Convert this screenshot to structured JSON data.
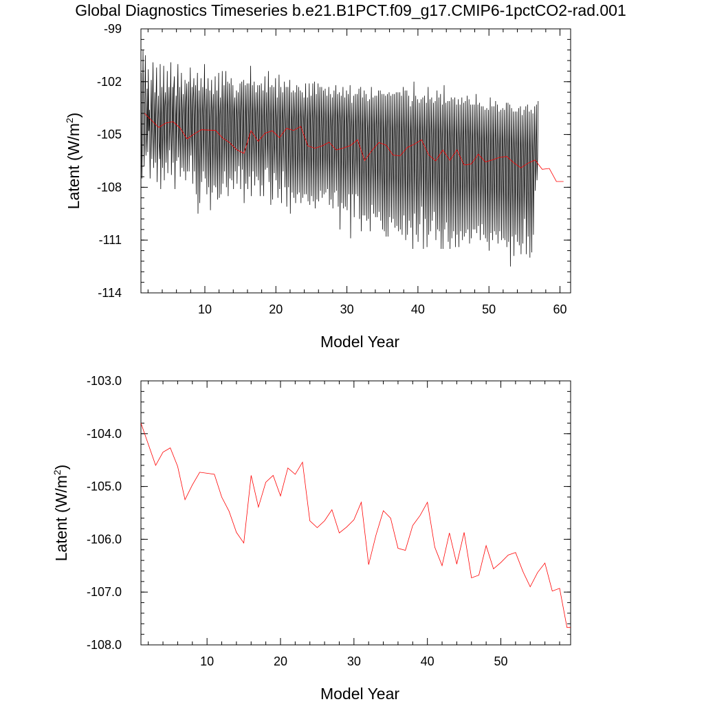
{
  "figure_title": "Global Diagnostics Timeseries b.e21.B1PCT.f09_g17.CMIP6-1pctCO2-rad.001",
  "chart_data": [
    {
      "type": "line",
      "xlabel": "Model Year",
      "ylabel_main": "Latent (W/m",
      "ylabel_sup": "2",
      "ylabel_tail": ")",
      "xlim": [
        1,
        61.5
      ],
      "ylim": [
        -114,
        -99
      ],
      "x_ticks": [
        10,
        20,
        30,
        40,
        50,
        60
      ],
      "y_ticks": [
        -99,
        -102,
        -105,
        -108,
        -111,
        -114
      ],
      "y_tick_labels": [
        "-99",
        "-102",
        "-105",
        "-108",
        "-111",
        "-114"
      ],
      "grid": false,
      "series": [
        {
          "color": "#000000",
          "x_start": 1.04,
          "x_step": 0.0833,
          "values": [
            -101.5,
            -107.5,
            -105.4,
            -100.2,
            -103.9,
            -106.8,
            -103.1,
            -100.5,
            -106.2,
            -105.1,
            -102.4,
            -106.0,
            -101.3,
            -104.8,
            -103.6,
            -107.5,
            -104.2,
            -101.9,
            -106.4,
            -103.3,
            -100.9,
            -106.9,
            -104.8,
            -102.6,
            -106.6,
            -103.1,
            -101.2,
            -107.7,
            -104.5,
            -102.8,
            -105.4,
            -106.4,
            -101.0,
            -108.1,
            -104.6,
            -102.3,
            -106.9,
            -104.0,
            -101.1,
            -107.6,
            -103.4,
            -102.6,
            -106.6,
            -104.6,
            -101.4,
            -107.2,
            -103.7,
            -102.3,
            -105.9,
            -104.2,
            -100.9,
            -107.3,
            -104.6,
            -102.3,
            -106.6,
            -102.4,
            -101.7,
            -108.1,
            -104.5,
            -102.8,
            -106.5,
            -103.0,
            -101.0,
            -106.3,
            -104.6,
            -102.3,
            -107.4,
            -103.8,
            -101.5,
            -106.9,
            -104.0,
            -102.7,
            -107.1,
            -104.8,
            -101.9,
            -107.6,
            -103.2,
            -102.1,
            -107.1,
            -104.4,
            -102.0,
            -107.1,
            -104.3,
            -101.2,
            -106.2,
            -104.6,
            -102.3,
            -107.8,
            -103.0,
            -101.8,
            -107.1,
            -103.9,
            -102.2,
            -108.4,
            -103.9,
            -101.5,
            -109.5,
            -104.0,
            -102.5,
            -108.9,
            -104.5,
            -101.8,
            -107.7,
            -104.4,
            -102.3,
            -107.1,
            -103.9,
            -101.0,
            -107.5,
            -104.1,
            -102.4,
            -108.4,
            -104.1,
            -101.8,
            -108.0,
            -104.9,
            -102.5,
            -109.3,
            -104.0,
            -101.9,
            -108.3,
            -103.8,
            -102.7,
            -107.9,
            -104.4,
            -101.7,
            -108.0,
            -104.9,
            -102.5,
            -108.7,
            -104.2,
            -101.5,
            -108.6,
            -103.9,
            -102.9,
            -108.4,
            -104.6,
            -101.4,
            -107.8,
            -104.2,
            -102.2,
            -107.1,
            -104.5,
            -101.4,
            -108.0,
            -103.9,
            -102.0,
            -108.5,
            -104.6,
            -102.1,
            -107.5,
            -104.1,
            -101.8,
            -107.6,
            -104.7,
            -102.2,
            -108.1,
            -103.8,
            -102.9,
            -107.1,
            -104.2,
            -102.5,
            -107.8,
            -104.3,
            -102.6,
            -106.8,
            -104.5,
            -102.1,
            -108.1,
            -103.9,
            -102.0,
            -107.0,
            -104.6,
            -101.9,
            -108.9,
            -104.6,
            -102.2,
            -107.8,
            -104.1,
            -102.1,
            -108.1,
            -104.6,
            -102.1,
            -107.4,
            -104.4,
            -101.1,
            -108.5,
            -104.6,
            -102.2,
            -107.1,
            -104.4,
            -102.0,
            -107.9,
            -104.4,
            -102.6,
            -107.4,
            -104.1,
            -102.2,
            -107.6,
            -104.7,
            -102.2,
            -108.5,
            -104.5,
            -102.1,
            -107.9,
            -104.7,
            -102.5,
            -108.5,
            -104.3,
            -101.7,
            -107.0,
            -104.5,
            -102.6,
            -106.9,
            -104.6,
            -101.4,
            -107.7,
            -104.6,
            -102.3,
            -109.0,
            -104.9,
            -102.2,
            -108.7,
            -104.6,
            -102.3,
            -107.2,
            -104.9,
            -101.8,
            -107.6,
            -104.5,
            -102.9,
            -108.6,
            -104.9,
            -101.6,
            -108.1,
            -105.0,
            -102.3,
            -108.9,
            -104.4,
            -102.6,
            -107.1,
            -104.5,
            -102.0,
            -108.0,
            -105.2,
            -102.3,
            -109.1,
            -105.6,
            -102.3,
            -108.0,
            -104.6,
            -101.9,
            -109.5,
            -105.0,
            -102.6,
            -108.3,
            -104.8,
            -102.5,
            -108.6,
            -104.1,
            -102.6,
            -108.9,
            -105.0,
            -102.2,
            -108.4,
            -104.7,
            -102.3,
            -108.3,
            -104.6,
            -102.5,
            -108.9,
            -104.6,
            -102.6,
            -108.6,
            -104.6,
            -102.9,
            -108.4,
            -104.1,
            -102.1,
            -108.4,
            -104.6,
            -102.9,
            -108.8,
            -104.8,
            -102.1,
            -109.0,
            -104.4,
            -102.8,
            -108.5,
            -104.7,
            -102.1,
            -108.8,
            -104.5,
            -102.0,
            -109.2,
            -104.4,
            -102.7,
            -108.7,
            -105.1,
            -102.1,
            -108.8,
            -104.5,
            -102.3,
            -108.2,
            -104.9,
            -102.3,
            -108.6,
            -105.0,
            -102.5,
            -108.4,
            -104.4,
            -102.4,
            -108.3,
            -105.0,
            -102.8,
            -108.1,
            -104.9,
            -102.3,
            -109.0,
            -104.9,
            -102.7,
            -108.7,
            -104.8,
            -102.9,
            -109.2,
            -104.5,
            -102.5,
            -108.3,
            -104.5,
            -102.2,
            -108.2,
            -104.3,
            -102.7,
            -109.1,
            -104.5,
            -102.6,
            -110.4,
            -104.6,
            -102.8,
            -108.9,
            -104.6,
            -102.3,
            -109.2,
            -104.7,
            -102.9,
            -109.1,
            -104.7,
            -102.5,
            -109.3,
            -104.6,
            -102.7,
            -108.4,
            -104.7,
            -102.2,
            -110.9,
            -104.8,
            -103.2,
            -108.4,
            -105.2,
            -102.8,
            -109.7,
            -105.0,
            -102.7,
            -108.4,
            -105.2,
            -102.7,
            -108.5,
            -104.8,
            -102.4,
            -109.8,
            -105.4,
            -102.3,
            -110.5,
            -105.2,
            -102.9,
            -109.6,
            -105.1,
            -102.5,
            -109.6,
            -104.6,
            -102.7,
            -109.9,
            -105.5,
            -103.1,
            -109.8,
            -105.3,
            -103.0,
            -110.5,
            -105.0,
            -102.3,
            -109.0,
            -105.0,
            -102.9,
            -109.5,
            -105.0,
            -102.8,
            -109.7,
            -105.0,
            -102.8,
            -109.7,
            -105.4,
            -102.5,
            -109.4,
            -105.3,
            -102.5,
            -109.9,
            -105.0,
            -102.7,
            -110.4,
            -105.5,
            -102.7,
            -110.5,
            -105.4,
            -102.8,
            -110.8,
            -105.0,
            -102.7,
            -110.8,
            -105.0,
            -102.6,
            -109.7,
            -105.6,
            -102.8,
            -110.0,
            -105.7,
            -102.7,
            -109.8,
            -105.5,
            -102.7,
            -110.3,
            -105.5,
            -102.6,
            -110.2,
            -105.5,
            -102.6,
            -110.5,
            -105.5,
            -102.6,
            -110.4,
            -105.5,
            -102.8,
            -110.7,
            -105.4,
            -102.3,
            -109.6,
            -105.5,
            -102.5,
            -111.0,
            -105.7,
            -102.5,
            -110.7,
            -105.8,
            -102.8,
            -109.9,
            -105.4,
            -103.4,
            -110.3,
            -105.2,
            -103.1,
            -111.5,
            -105.0,
            -102.0,
            -109.5,
            -105.6,
            -102.8,
            -110.7,
            -105.6,
            -103.0,
            -111.1,
            -105.6,
            -103.2,
            -110.1,
            -105.3,
            -103.0,
            -109.1,
            -105.5,
            -102.9,
            -111.5,
            -105.4,
            -102.8,
            -109.8,
            -105.9,
            -103.2,
            -111.4,
            -105.2,
            -102.3,
            -110.7,
            -105.6,
            -103.0,
            -110.5,
            -105.2,
            -102.9,
            -109.9,
            -105.8,
            -103.2,
            -109.4,
            -105.5,
            -103.1,
            -111.0,
            -105.8,
            -102.5,
            -110.4,
            -105.8,
            -102.9,
            -110.5,
            -105.6,
            -102.7,
            -111.5,
            -105.5,
            -103.3,
            -111.5,
            -105.6,
            -102.2,
            -110.4,
            -105.6,
            -103.2,
            -110.0,
            -105.7,
            -103.1,
            -111.1,
            -105.8,
            -103.1,
            -111.5,
            -105.7,
            -102.9,
            -110.9,
            -105.9,
            -103.0,
            -110.5,
            -105.6,
            -102.9,
            -111.4,
            -105.8,
            -103.3,
            -110.7,
            -105.8,
            -103.0,
            -111.4,
            -106.1,
            -103.3,
            -110.5,
            -105.8,
            -102.9,
            -111.0,
            -105.7,
            -103.2,
            -110.8,
            -105.6,
            -103.1,
            -110.6,
            -106.0,
            -102.8,
            -110.4,
            -105.7,
            -103.0,
            -111.2,
            -105.5,
            -103.3,
            -110.9,
            -105.9,
            -103.3,
            -110.4,
            -106.0,
            -103.3,
            -110.4,
            -106.2,
            -102.7,
            -110.6,
            -105.8,
            -103.3,
            -110.2,
            -106.1,
            -103.2,
            -111.0,
            -106.1,
            -103.4,
            -110.1,
            -106.1,
            -103.4,
            -110.7,
            -106.0,
            -103.6,
            -110.9,
            -105.9,
            -103.5,
            -111.1,
            -106.0,
            -103.6,
            -111.6,
            -106.0,
            -102.9,
            -110.6,
            -106.2,
            -103.4,
            -111.0,
            -105.9,
            -103.4,
            -110.5,
            -106.1,
            -103.1,
            -110.7,
            -106.6,
            -103.3,
            -111.2,
            -106.4,
            -103.7,
            -110.5,
            -106.0,
            -103.6,
            -111.0,
            -106.1,
            -103.5,
            -110.9,
            -106.2,
            -103.6,
            -111.0,
            -106.5,
            -103.2,
            -111.4,
            -106.6,
            -103.2,
            -111.1,
            -106.1,
            -103.3,
            -112.5,
            -106.2,
            -103.5,
            -110.8,
            -106.4,
            -103.7,
            -111.9,
            -106.4,
            -103.7,
            -110.7,
            -106.4,
            -103.7,
            -111.1,
            -106.4,
            -103.5,
            -111.3,
            -106.4,
            -103.4,
            -111.8,
            -106.5,
            -103.9,
            -111.2,
            -106.6,
            -103.6,
            -109.8,
            -106.7,
            -103.4,
            -111.8,
            -106.6,
            -103.3,
            -110.8,
            -106.4,
            -103.7,
            -112.0,
            -106.8,
            -103.6,
            -111.7,
            -106.9,
            -103.8,
            -110.7,
            -106.7,
            -103.4,
            -108.2,
            -106.5,
            -103.3,
            -107.6,
            -106.3,
            -103.1
          ],
          "note": ""
        },
        {
          "color": "#ff0000",
          "x": [
            1.5,
            2.5,
            3.5,
            4.5,
            5.5,
            6.5,
            7.5,
            8.5,
            9.5,
            10.5,
            11.5,
            12.5,
            13.5,
            14.5,
            15.5,
            16.5,
            17.5,
            18.5,
            19.5,
            20.5,
            21.5,
            22.5,
            23.5,
            24.5,
            25.5,
            26.5,
            27.5,
            28.5,
            29.5,
            30.5,
            31.5,
            32.5,
            33.5,
            34.5,
            35.5,
            36.5,
            37.5,
            38.5,
            39.5,
            40.5,
            41.5,
            42.5,
            43.5,
            44.5,
            45.5,
            46.5,
            47.5,
            48.5,
            49.5,
            50.5,
            51.5,
            52.5,
            53.5,
            54.5,
            55.5,
            56.5,
            57.5,
            58.5,
            59.5,
            60.5
          ],
          "values": [
            -103.8,
            -104.2,
            -104.6,
            -104.35,
            -104.27,
            -104.62,
            -105.25,
            -104.97,
            -104.73,
            -104.75,
            -104.77,
            -105.2,
            -105.47,
            -105.87,
            -106.07,
            -104.79,
            -105.39,
            -104.92,
            -104.79,
            -105.18,
            -104.65,
            -104.77,
            -104.54,
            -105.65,
            -105.78,
            -105.65,
            -105.44,
            -105.88,
            -105.77,
            -105.63,
            -105.3,
            -106.48,
            -105.92,
            -105.46,
            -105.6,
            -106.17,
            -106.21,
            -105.74,
            -105.55,
            -105.3,
            -106.15,
            -106.5,
            -105.88,
            -106.47,
            -105.87,
            -106.73,
            -106.68,
            -106.12,
            -106.56,
            -106.44,
            -106.3,
            -106.25,
            -106.61,
            -106.9,
            -106.63,
            -106.45,
            -106.98,
            -106.93,
            -107.67,
            -107.67
          ]
        }
      ]
    },
    {
      "type": "line",
      "xlabel": "Model Year",
      "ylabel_main": "Latent (W/m",
      "ylabel_sup": "2",
      "ylabel_tail": ")",
      "xlim": [
        1,
        59.5
      ],
      "ylim": [
        -108,
        -103
      ],
      "x_ticks": [
        10,
        20,
        30,
        40,
        50
      ],
      "y_ticks": [
        -103,
        -104,
        -105,
        -106,
        -107,
        -108
      ],
      "y_tick_labels": [
        "-103.0",
        "-104.0",
        "-105.0",
        "-106.0",
        "-107.0",
        "-108.0"
      ],
      "grid": false,
      "series": [
        {
          "color": "#ff0000",
          "x": [
            1.0,
            3.0,
            4.0,
            5.0,
            6.0,
            7.0,
            8.0,
            9.0,
            10.0,
            11.0,
            12.0,
            13.0,
            14.0,
            15.0,
            16.0,
            17.0,
            18.0,
            19.0,
            20.0,
            21.0,
            22.0,
            23.0,
            24.0,
            25.0,
            26.0,
            27.0,
            28.0,
            29.0,
            30.0,
            31.0,
            32.0,
            33.0,
            34.0,
            35.0,
            36.0,
            37.0,
            38.0,
            39.0,
            40.0,
            41.0,
            42.0,
            43.0,
            44.0,
            45.0,
            46.0,
            47.0,
            48.0,
            49.0,
            50.0,
            51.0,
            52.0,
            53.0,
            54.0,
            55.0,
            56.0,
            57.0,
            58.0,
            59.0,
            59.5
          ],
          "values": [
            -103.8,
            -104.6,
            -104.35,
            -104.27,
            -104.62,
            -105.25,
            -104.97,
            -104.73,
            -104.75,
            -104.77,
            -105.2,
            -105.47,
            -105.87,
            -106.07,
            -104.79,
            -105.39,
            -104.92,
            -104.79,
            -105.18,
            -104.65,
            -104.77,
            -104.54,
            -105.65,
            -105.78,
            -105.65,
            -105.44,
            -105.88,
            -105.77,
            -105.63,
            -105.3,
            -106.48,
            -105.92,
            -105.46,
            -105.6,
            -106.17,
            -106.21,
            -105.74,
            -105.55,
            -105.3,
            -106.15,
            -106.5,
            -105.88,
            -106.47,
            -105.87,
            -106.73,
            -106.68,
            -106.12,
            -106.56,
            -106.44,
            -106.3,
            -106.25,
            -106.61,
            -106.9,
            -106.63,
            -106.45,
            -106.98,
            -106.93,
            -107.67,
            -107.67
          ]
        }
      ]
    }
  ]
}
